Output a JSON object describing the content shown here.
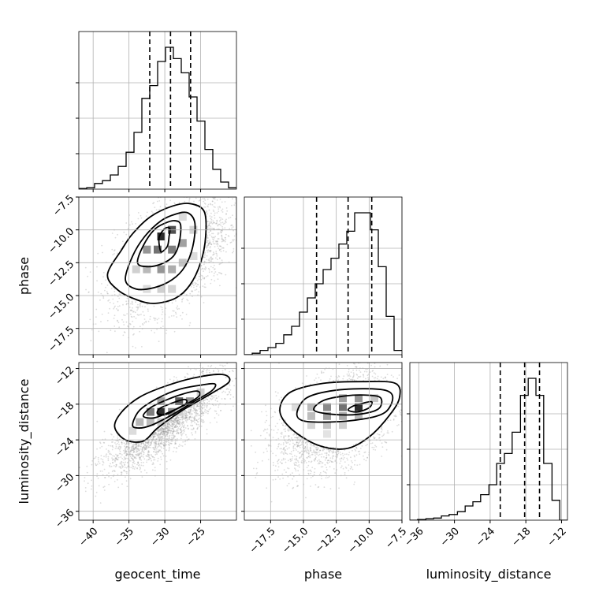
{
  "chart_data": {
    "type": "corner",
    "parameters": [
      "geocent_time",
      "phase",
      "luminosity_distance"
    ],
    "grid": true,
    "ranges": {
      "geocent_time": [
        -42.0,
        -20.0
      ],
      "phase": [
        -19.5,
        -7.5
      ],
      "luminosity_distance": [
        -37.5,
        -11.0
      ]
    },
    "ticks": {
      "geocent_time": {
        "values": [
          -40,
          -35,
          -30,
          -25
        ],
        "labels": [
          "−40",
          "−35",
          "−30",
          "−25"
        ]
      },
      "phase": {
        "values": [
          -17.5,
          -15.0,
          -12.5,
          -10.0,
          -7.5
        ],
        "labels": [
          "−17.5",
          "−15.0",
          "−12.5",
          "−10.0",
          "−7.5"
        ]
      },
      "luminosity_distance": {
        "values": [
          -36,
          -30,
          -24,
          -18,
          -12
        ],
        "labels": [
          "−36",
          "−30",
          "−24",
          "−18",
          "−12"
        ]
      }
    },
    "histograms": {
      "geocent_time": {
        "bin_edges": [
          -42.0,
          -40.9,
          -39.8,
          -38.7,
          -37.6,
          -36.5,
          -35.4,
          -34.3,
          -33.2,
          -32.1,
          -31.0,
          -29.9,
          -28.8,
          -27.7,
          -26.6,
          -25.5,
          -24.4,
          -23.3,
          -22.2,
          -21.1,
          -20.0
        ],
        "counts": [
          0.005,
          0.01,
          0.04,
          0.06,
          0.1,
          0.16,
          0.26,
          0.4,
          0.64,
          0.73,
          0.9,
          1.0,
          0.92,
          0.82,
          0.65,
          0.48,
          0.28,
          0.14,
          0.05,
          0.01
        ],
        "quantiles": [
          -32.1,
          -29.2,
          -26.4
        ]
      },
      "phase": {
        "bin_edges": [
          -19.5,
          -18.9,
          -18.3,
          -17.7,
          -17.1,
          -16.5,
          -15.9,
          -15.3,
          -14.7,
          -14.1,
          -13.5,
          -12.9,
          -12.3,
          -11.7,
          -11.1,
          -10.5,
          -9.9,
          -9.3,
          -8.7,
          -8.1,
          -7.5
        ],
        "counts": [
          0.0,
          0.01,
          0.03,
          0.05,
          0.08,
          0.14,
          0.2,
          0.3,
          0.4,
          0.5,
          0.6,
          0.68,
          0.78,
          0.87,
          1.0,
          1.0,
          0.88,
          0.62,
          0.27,
          0.03
        ],
        "quantiles": [
          -14.0,
          -11.6,
          -9.8
        ]
      },
      "luminosity_distance": {
        "bin_edges": [
          -37.5,
          -36.2,
          -34.8,
          -33.5,
          -32.2,
          -30.9,
          -29.5,
          -28.2,
          -26.9,
          -25.6,
          -24.2,
          -22.9,
          -21.6,
          -20.3,
          -18.9,
          -17.6,
          -16.3,
          -15.0,
          -13.6,
          -12.3,
          -11.0
        ],
        "counts": [
          0.0,
          0.005,
          0.01,
          0.015,
          0.03,
          0.04,
          0.06,
          0.1,
          0.13,
          0.18,
          0.25,
          0.4,
          0.47,
          0.62,
          0.88,
          1.0,
          0.88,
          0.4,
          0.14,
          0.0
        ],
        "quantiles": [
          -22.3,
          -18.2,
          -15.7
        ]
      }
    },
    "joint": [
      {
        "x": "geocent_time",
        "y": "phase",
        "peak": [
          -30.0,
          -10.6
        ],
        "scatter": {
          "center": [
            -29.0,
            -12.0
          ],
          "spread": [
            4.0,
            2.2
          ],
          "rho": 0.5,
          "count": 3000
        },
        "density_blocks": [
          {
            "x": -30.5,
            "y": -10.5,
            "level": 0.9
          },
          {
            "x": -29.0,
            "y": -10.0,
            "level": 0.75
          },
          {
            "x": -31.0,
            "y": -11.5,
            "level": 0.6
          },
          {
            "x": -29.0,
            "y": -11.5,
            "level": 0.55
          },
          {
            "x": -32.5,
            "y": -11.5,
            "level": 0.45
          },
          {
            "x": -30.5,
            "y": -13.0,
            "level": 0.45
          },
          {
            "x": -27.5,
            "y": -11.0,
            "level": 0.4
          },
          {
            "x": -29.0,
            "y": -13.0,
            "level": 0.35
          },
          {
            "x": -32.5,
            "y": -13.0,
            "level": 0.3
          },
          {
            "x": -27.5,
            "y": -12.5,
            "level": 0.25
          },
          {
            "x": -34.0,
            "y": -13.0,
            "level": 0.2
          },
          {
            "x": -30.5,
            "y": -14.5,
            "level": 0.2
          },
          {
            "x": -29.0,
            "y": -14.5,
            "level": 0.18
          },
          {
            "x": -26.0,
            "y": -10.0,
            "level": 0.18
          },
          {
            "x": -26.0,
            "y": -12.0,
            "level": 0.15
          },
          {
            "x": -32.5,
            "y": -14.5,
            "level": 0.15
          },
          {
            "x": -27.5,
            "y": -9.0,
            "level": 0.15
          }
        ],
        "contours": [
          [
            [
              -30.6,
              -11.6
            ],
            [
              -30.8,
              -10.6
            ],
            [
              -30.0,
              -9.9
            ],
            [
              -29.3,
              -9.9
            ],
            [
              -29.4,
              -10.5
            ],
            [
              -29.6,
              -11.2
            ],
            [
              -30.2,
              -11.6
            ]
          ],
          [
            [
              -33.8,
              -12.5
            ],
            [
              -33.0,
              -11.2
            ],
            [
              -31.5,
              -10.0
            ],
            [
              -30.0,
              -9.5
            ],
            [
              -28.7,
              -9.3
            ],
            [
              -27.8,
              -9.6
            ],
            [
              -28.0,
              -11.0
            ],
            [
              -28.8,
              -12.0
            ],
            [
              -30.5,
              -12.6
            ],
            [
              -32.5,
              -12.8
            ]
          ],
          [
            [
              -35.5,
              -13.8
            ],
            [
              -34.5,
              -12.0
            ],
            [
              -32.8,
              -10.5
            ],
            [
              -30.5,
              -9.3
            ],
            [
              -28.5,
              -8.8
            ],
            [
              -26.8,
              -8.7
            ],
            [
              -25.8,
              -9.5
            ],
            [
              -26.1,
              -11.3
            ],
            [
              -27.2,
              -12.8
            ],
            [
              -29.0,
              -13.8
            ],
            [
              -31.5,
              -14.4
            ],
            [
              -34.0,
              -14.5
            ]
          ],
          [
            [
              -38.0,
              -13.4
            ],
            [
              -36.0,
              -11.5
            ],
            [
              -34.5,
              -10.3
            ],
            [
              -32.0,
              -9.0
            ],
            [
              -29.0,
              -8.2
            ],
            [
              -26.5,
              -8.0
            ],
            [
              -24.5,
              -8.6
            ],
            [
              -24.3,
              -10.5
            ],
            [
              -25.0,
              -12.5
            ],
            [
              -26.5,
              -14.2
            ],
            [
              -28.5,
              -15.2
            ],
            [
              -31.5,
              -15.6
            ],
            [
              -34.0,
              -15.3
            ],
            [
              -36.5,
              -14.6
            ]
          ]
        ]
      },
      {
        "x": "geocent_time",
        "y": "luminosity_distance",
        "peak": [
          -30.0,
          -19.5
        ],
        "scatter": {
          "center": [
            -30.0,
            -21.0
          ],
          "spread": [
            4.0,
            4.0
          ],
          "rho": 0.8,
          "count": 3000
        },
        "density_blocks": [
          {
            "x": -30.5,
            "y": -19.3,
            "level": 0.9
          },
          {
            "x": -28.0,
            "y": -17.5,
            "level": 0.7
          },
          {
            "x": -32.0,
            "y": -19.3,
            "level": 0.55
          },
          {
            "x": -29.0,
            "y": -19.3,
            "level": 0.5
          },
          {
            "x": -26.5,
            "y": -17.5,
            "level": 0.45
          },
          {
            "x": -30.5,
            "y": -17.5,
            "level": 0.4
          },
          {
            "x": -33.5,
            "y": -21.0,
            "level": 0.3
          },
          {
            "x": -32.0,
            "y": -21.0,
            "level": 0.28
          },
          {
            "x": -30.5,
            "y": -21.0,
            "level": 0.22
          },
          {
            "x": -25.0,
            "y": -16.0,
            "level": 0.2
          },
          {
            "x": -34.5,
            "y": -22.5,
            "level": 0.15
          },
          {
            "x": -28.0,
            "y": -19.3,
            "level": 0.2
          }
        ],
        "contours": [
          [
            [
              -31.0,
              -19.6
            ],
            [
              -30.8,
              -18.8
            ],
            [
              -29.8,
              -18.2
            ],
            [
              -28.5,
              -17.6
            ],
            [
              -27.2,
              -17.2
            ],
            [
              -27.0,
              -17.8
            ],
            [
              -28.5,
              -18.9
            ],
            [
              -29.8,
              -19.7
            ]
          ],
          [
            [
              -33.0,
              -20.0
            ],
            [
              -32.0,
              -18.6
            ],
            [
              -30.0,
              -17.4
            ],
            [
              -27.5,
              -16.3
            ],
            [
              -25.5,
              -15.8
            ],
            [
              -25.2,
              -16.6
            ],
            [
              -27.0,
              -18.0
            ],
            [
              -29.5,
              -19.4
            ],
            [
              -31.5,
              -20.3
            ]
          ],
          [
            [
              -34.5,
              -21.4
            ],
            [
              -33.5,
              -19.0
            ],
            [
              -31.0,
              -17.0
            ],
            [
              -28.0,
              -15.5
            ],
            [
              -25.0,
              -14.8
            ],
            [
              -23.0,
              -14.6
            ],
            [
              -23.5,
              -15.8
            ],
            [
              -26.0,
              -17.6
            ],
            [
              -29.0,
              -19.8
            ],
            [
              -32.0,
              -21.6
            ],
            [
              -33.8,
              -22.0
            ]
          ],
          [
            [
              -37.0,
              -21.8
            ],
            [
              -36.0,
              -19.3
            ],
            [
              -33.5,
              -16.8
            ],
            [
              -30.0,
              -15.0
            ],
            [
              -26.0,
              -13.6
            ],
            [
              -22.0,
              -13.0
            ],
            [
              -21.0,
              -14.2
            ],
            [
              -23.5,
              -16.2
            ],
            [
              -27.5,
              -19.0
            ],
            [
              -31.0,
              -22.0
            ],
            [
              -33.0,
              -24.2
            ],
            [
              -35.5,
              -24.0
            ]
          ]
        ]
      },
      {
        "x": "phase",
        "y": "luminosity_distance",
        "peak": [
          -11.0,
          -19.0
        ],
        "scatter": {
          "center": [
            -12.5,
            -21.0
          ],
          "spread": [
            2.2,
            4.0
          ],
          "rho": 0.4,
          "count": 3000
        },
        "density_blocks": [
          {
            "x": -10.8,
            "y": -18.5,
            "level": 0.9
          },
          {
            "x": -12.0,
            "y": -18.5,
            "level": 0.6
          },
          {
            "x": -13.2,
            "y": -18.5,
            "level": 0.5
          },
          {
            "x": -10.8,
            "y": -17.0,
            "level": 0.45
          },
          {
            "x": -12.0,
            "y": -17.0,
            "level": 0.4
          },
          {
            "x": -13.2,
            "y": -20.0,
            "level": 0.4
          },
          {
            "x": -12.0,
            "y": -20.0,
            "level": 0.35
          },
          {
            "x": -14.4,
            "y": -18.5,
            "level": 0.3
          },
          {
            "x": -14.4,
            "y": -20.0,
            "level": 0.28
          },
          {
            "x": -10.8,
            "y": -20.0,
            "level": 0.3
          },
          {
            "x": -13.2,
            "y": -21.5,
            "level": 0.25
          },
          {
            "x": -12.0,
            "y": -21.5,
            "level": 0.2
          },
          {
            "x": -14.4,
            "y": -21.5,
            "level": 0.18
          },
          {
            "x": -9.6,
            "y": -17.0,
            "level": 0.25
          },
          {
            "x": -15.6,
            "y": -18.5,
            "level": 0.15
          },
          {
            "x": -13.2,
            "y": -23.0,
            "level": 0.12
          }
        ],
        "contours": [
          [
            [
              -11.6,
              -19.0
            ],
            [
              -11.2,
              -18.3
            ],
            [
              -10.4,
              -17.8
            ],
            [
              -9.8,
              -17.6
            ],
            [
              -10.0,
              -18.6
            ],
            [
              -10.9,
              -19.3
            ]
          ],
          [
            [
              -14.2,
              -19.0
            ],
            [
              -13.5,
              -17.4
            ],
            [
              -11.8,
              -16.6
            ],
            [
              -10.0,
              -16.5
            ],
            [
              -9.1,
              -17.0
            ],
            [
              -9.3,
              -18.8
            ],
            [
              -10.8,
              -19.7
            ],
            [
              -12.8,
              -19.7
            ]
          ],
          [
            [
              -15.5,
              -19.5
            ],
            [
              -14.8,
              -17.0
            ],
            [
              -13.0,
              -15.8
            ],
            [
              -10.5,
              -15.4
            ],
            [
              -8.7,
              -15.7
            ],
            [
              -8.2,
              -17.0
            ],
            [
              -8.8,
              -19.4
            ],
            [
              -10.5,
              -20.5
            ],
            [
              -13.0,
              -21.0
            ],
            [
              -15.0,
              -20.8
            ]
          ],
          [
            [
              -16.8,
              -19.0
            ],
            [
              -16.0,
              -16.0
            ],
            [
              -13.5,
              -14.5
            ],
            [
              -10.5,
              -14.2
            ],
            [
              -8.0,
              -14.5
            ],
            [
              -7.7,
              -17.0
            ],
            [
              -8.5,
              -20.0
            ],
            [
              -10.0,
              -23.5
            ],
            [
              -11.8,
              -25.5
            ],
            [
              -14.0,
              -24.8
            ],
            [
              -16.0,
              -22.0
            ]
          ]
        ]
      }
    ]
  }
}
